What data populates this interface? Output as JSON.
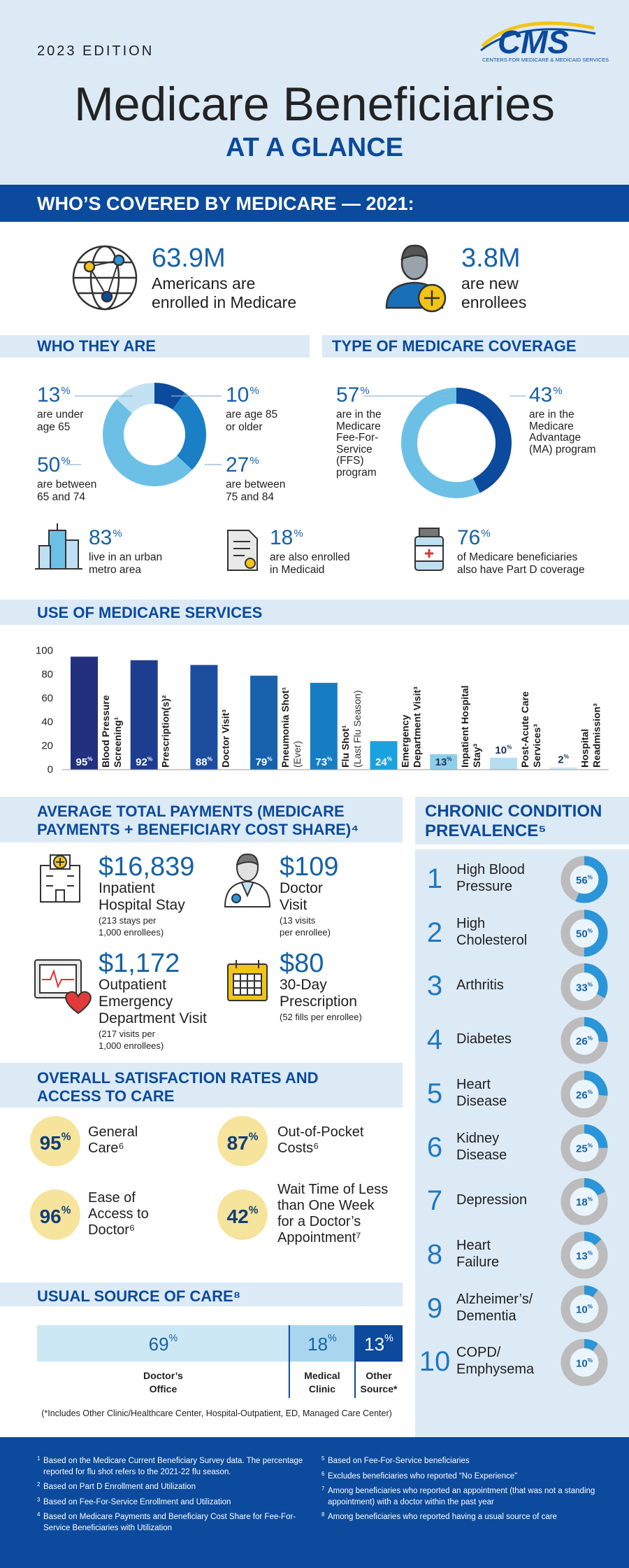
{
  "header": {
    "edition": "2023 EDITION",
    "title": "Medicare Beneficiaries",
    "subtitle": "AT A GLANCE",
    "logo": "CMS",
    "logo_caption": "CENTERS FOR MEDICARE & MEDICAID SERVICES"
  },
  "unit": "%",
  "covered": {
    "title": "WHO’S COVERED BY MEDICARE — 2021:",
    "items": [
      {
        "value": "63.9M",
        "label": [
          "Americans are",
          "enrolled in Medicare"
        ]
      },
      {
        "value": "3.8M",
        "label": [
          "are new",
          "enrollees"
        ]
      }
    ]
  },
  "who_they_are": {
    "title": "WHO THEY ARE",
    "segments": [
      {
        "value": 10,
        "label": [
          "are age 85",
          "or older"
        ],
        "color": "#0b4a9c"
      },
      {
        "value": 27,
        "label": [
          "are between",
          "75 and 84"
        ],
        "color": "#1a7fc4"
      },
      {
        "value": 50,
        "label": [
          "are between",
          "65 and 74"
        ],
        "color": "#6cc0e5"
      },
      {
        "value": 13,
        "label": [
          "are under",
          "age 65"
        ],
        "color": "#c2e2f3"
      }
    ]
  },
  "coverage_type": {
    "title": "TYPE OF MEDICARE COVERAGE",
    "segments": [
      {
        "value": 43,
        "label": [
          "are in the",
          "Medicare",
          "Advantage",
          "(MA) program"
        ],
        "color": "#0b4a9c"
      },
      {
        "value": 57,
        "label": [
          "are in the",
          "Medicare",
          "Fee-For-",
          "Service",
          "(FFS)",
          "program"
        ],
        "color": "#6cc0e5"
      }
    ]
  },
  "stats": [
    {
      "value": 83,
      "label": [
        "live in an urban",
        "metro area"
      ]
    },
    {
      "value": 18,
      "label": [
        "are also enrolled",
        "in Medicaid"
      ]
    },
    {
      "value": 76,
      "label": [
        "of Medicare beneficiaries",
        "also have Part D coverage"
      ]
    }
  ],
  "chart_data": {
    "type": "bar",
    "title": "USE OF MEDICARE SERVICES",
    "categories": [
      [
        "Blood Pressure",
        "Screening¹"
      ],
      [
        "Prescription(s)²"
      ],
      [
        "Doctor Visit³"
      ],
      [
        "Pneumonia Shot¹"
      ],
      [
        "Flu Shot¹"
      ],
      [
        "Emergency",
        "Department Visit³"
      ],
      [
        "Inpatient Hospital",
        "Stay³"
      ],
      [
        "Post-Acute Care",
        "Services³"
      ],
      [
        "Hospital",
        "Readmission³"
      ]
    ],
    "category_notes": [
      null,
      null,
      null,
      "(Ever)",
      "(Last Flu Season)",
      null,
      null,
      null,
      null
    ],
    "values": [
      95,
      92,
      88,
      79,
      73,
      24,
      13,
      10,
      2
    ],
    "colors": [
      "#22307f",
      "#1f3d8f",
      "#1c4c9e",
      "#1761ad",
      "#167dc2",
      "#1ba1dd",
      "#8ccfe8",
      "#b5def0",
      "#d3ebf6"
    ],
    "ylim": [
      0,
      100
    ],
    "yticks": [
      0,
      20,
      40,
      60,
      80,
      100
    ]
  },
  "payments": {
    "title": [
      "AVERAGE TOTAL PAYMENTS (MEDICARE",
      "PAYMENTS + BENEFICIARY COST SHARE)⁴"
    ],
    "items": [
      {
        "value": "$16,839",
        "label": [
          "Inpatient",
          "Hospital Stay"
        ],
        "note": [
          "(213 stays per",
          "1,000 enrollees)"
        ]
      },
      {
        "value": "$109",
        "label": [
          "Doctor",
          "Visit"
        ],
        "note": [
          "(13 visits",
          "per enrollee)"
        ]
      },
      {
        "value": "$1,172",
        "label": [
          "Outpatient",
          "Emergency",
          "Department Visit"
        ],
        "note": [
          "(217 visits per",
          "1,000 enrollees)"
        ]
      },
      {
        "value": "$80",
        "label": [
          "30-Day",
          "Prescription"
        ],
        "note": [
          "(52 fills per enrollee)"
        ]
      }
    ]
  },
  "satisfaction": {
    "title": [
      "OVERALL SATISFACTION RATES AND",
      "ACCESS TO CARE"
    ],
    "items": [
      {
        "value": 95,
        "label": [
          "General",
          "Care⁶"
        ]
      },
      {
        "value": 87,
        "label": [
          "Out-of-Pocket",
          "Costs⁶"
        ]
      },
      {
        "value": 96,
        "label": [
          "Ease of",
          "Access to",
          "Doctor⁶"
        ]
      },
      {
        "value": 42,
        "label": [
          "Wait Time of Less",
          "than One Week",
          "for a Doctor’s",
          "Appointment⁷"
        ]
      }
    ]
  },
  "usual_source": {
    "title": "USUAL SOURCE OF CARE⁸",
    "segments": [
      {
        "value": 69,
        "label": [
          "Doctor’s",
          "Office"
        ],
        "color": "#cde8f5"
      },
      {
        "value": 18,
        "label": [
          "Medical",
          "Clinic"
        ],
        "color": "#a9d6ee"
      },
      {
        "value": 13,
        "label": [
          "Other",
          "Source*"
        ],
        "color": "#0b4a9c"
      }
    ],
    "note": "(*Includes Other Clinic/Healthcare Center, Hospital-Outpatient, ED, Managed Care Center)"
  },
  "chronic": {
    "title": [
      "CHRONIC CONDITION",
      "PREVALENCE⁵"
    ],
    "items": [
      {
        "rank": 1,
        "name": [
          "High Blood",
          "Pressure"
        ],
        "value": 56
      },
      {
        "rank": 2,
        "name": [
          "High",
          "Cholesterol"
        ],
        "value": 50
      },
      {
        "rank": 3,
        "name": [
          "Arthritis"
        ],
        "value": 33
      },
      {
        "rank": 4,
        "name": [
          "Diabetes"
        ],
        "value": 26
      },
      {
        "rank": 5,
        "name": [
          "Heart",
          "Disease"
        ],
        "value": 26
      },
      {
        "rank": 6,
        "name": [
          "Kidney",
          "Disease"
        ],
        "value": 25
      },
      {
        "rank": 7,
        "name": [
          "Depression"
        ],
        "value": 18
      },
      {
        "rank": 8,
        "name": [
          "Heart",
          "Failure"
        ],
        "value": 13
      },
      {
        "rank": 9,
        "name": [
          "Alzheimer’s/",
          "Dementia"
        ],
        "value": 10
      },
      {
        "rank": 10,
        "name": [
          "COPD/",
          "Emphysema"
        ],
        "value": 10
      }
    ]
  },
  "footnotes": {
    "left": [
      {
        "mark": "1",
        "text": "Based on the Medicare Current Beneficiary Survey data. The percentage reported for flu shot refers to the 2021-22 flu season."
      },
      {
        "mark": "2",
        "text": "Based on Part D Enrollment and Utilization"
      },
      {
        "mark": "3",
        "text": "Based on Fee-For-Service Enrollment and Utilization"
      },
      {
        "mark": "4",
        "text": "Based on Medicare Payments and Beneficiary Cost Share for Fee-For-Service Beneficiaries with Utilization"
      }
    ],
    "right": [
      {
        "mark": "5",
        "text": "Based on Fee-For-Service beneficiaries"
      },
      {
        "mark": "6",
        "text": "Excludes beneficiaries who reported “No Experience”"
      },
      {
        "mark": "7",
        "text": "Among beneficiaries who reported an appointment (that was not a standing appointment) with a doctor within the past year"
      },
      {
        "mark": "8",
        "text": "Among beneficiaries who reported having a usual source of care"
      }
    ]
  }
}
